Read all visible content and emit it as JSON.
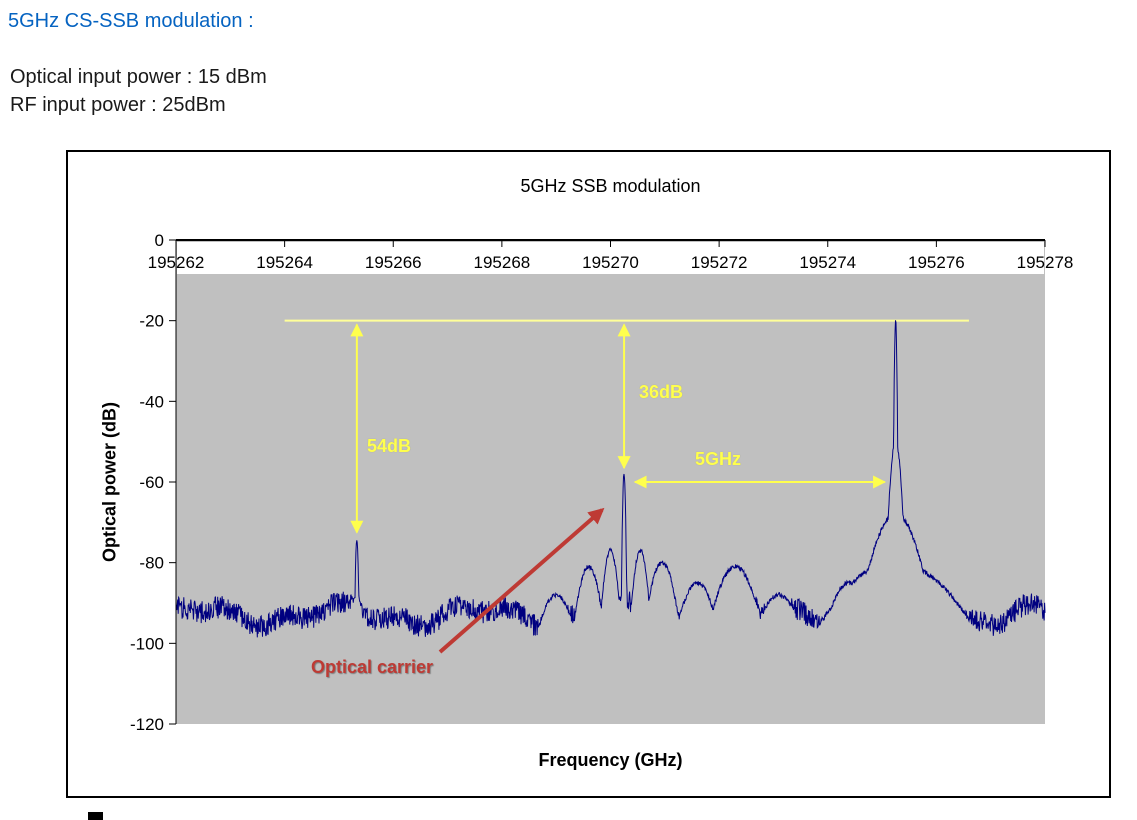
{
  "page": {
    "heading": "5GHz CS-SSB modulation :",
    "optical_input_line": "Optical input power : 15 dBm",
    "rf_input_line": "RF input power : 25dBm"
  },
  "chart_data": {
    "type": "line",
    "title": "5GHz SSB modulation",
    "xlabel": "Frequency (GHz)",
    "ylabel": "Optical power (dB)",
    "xlim": [
      195262,
      195278
    ],
    "ylim": [
      -120,
      0
    ],
    "x_ticks": [
      195262,
      195264,
      195266,
      195268,
      195270,
      195272,
      195274,
      195276,
      195278
    ],
    "y_ticks": [
      0,
      -20,
      -40,
      -60,
      -80,
      -100,
      -120
    ],
    "grid": false,
    "legend": false,
    "series": [
      {
        "name": "optical spectrum",
        "color": "#000080"
      }
    ],
    "key_points": {
      "noise_floor_db": -93,
      "optical_carrier": {
        "freq_ghz": 195270.25,
        "level_db": -58
      },
      "left_spur": {
        "freq_ghz": 195265.33,
        "level_db": -74
      },
      "ssb_sideband": {
        "freq_ghz": 195275.25,
        "level_db": -20
      },
      "carrier_suppression_db": 36,
      "spur_suppression_db": 54,
      "carrier_sideband_spacing_ghz": 5
    },
    "noise_floor": {
      "mean_db": -93,
      "jitter_db": 2.8,
      "wave1_amp_db": 2.0,
      "wave1_period_ghz": 2.6,
      "wave2_amp_db": 1.3,
      "wave2_period_ghz": 1.05
    },
    "peaks": [
      {
        "freq": 195265.33,
        "level_db": -74,
        "width_ghz": 0.02
      },
      {
        "freq": 195265.33,
        "level_db": -88,
        "width_ghz": 0.1
      },
      {
        "freq": 195269.0,
        "level_db": -88,
        "width_ghz": 0.25
      },
      {
        "freq": 195269.6,
        "level_db": -81,
        "width_ghz": 0.16
      },
      {
        "freq": 195270.0,
        "level_db": -77,
        "width_ghz": 0.1
      },
      {
        "freq": 195270.25,
        "level_db": -58,
        "width_ghz": 0.02
      },
      {
        "freq": 195270.55,
        "level_db": -77,
        "width_ghz": 0.1
      },
      {
        "freq": 195270.95,
        "level_db": -80,
        "width_ghz": 0.18
      },
      {
        "freq": 195271.6,
        "level_db": -85,
        "width_ghz": 0.25
      },
      {
        "freq": 195272.3,
        "level_db": -81,
        "width_ghz": 0.28
      },
      {
        "freq": 195273.1,
        "level_db": -88,
        "width_ghz": 0.3
      },
      {
        "freq": 195274.4,
        "level_db": -85,
        "width_ghz": 0.3
      },
      {
        "freq": 195275.25,
        "level_db": -20,
        "width_ghz": 0.015
      },
      {
        "freq": 195275.25,
        "level_db": -50,
        "width_ghz": 0.07
      },
      {
        "freq": 195275.25,
        "level_db": -68,
        "width_ghz": 0.3
      },
      {
        "freq": 195275.25,
        "level_db": -80,
        "width_ghz": 0.8
      }
    ],
    "reference_line": {
      "level_db": -20,
      "from_freq": 195264.0,
      "to_freq": 195276.6,
      "color": "#FFFF99"
    },
    "annotations": {
      "delta_54": {
        "label": "54dB",
        "freq": 195265.33,
        "from_db": -20,
        "to_db": -72.5
      },
      "delta_36": {
        "label": "36dB",
        "freq": 195270.25,
        "from_db": -20,
        "to_db": -56.5
      },
      "spacing": {
        "label": "5GHz",
        "level_db": -60,
        "from_freq": 195270.45,
        "to_freq": 195275.05
      },
      "carrier": {
        "label": "Optical carrier",
        "points_to_freq": 195270.25
      }
    },
    "colors": {
      "plot_bg": "#C0C0C0",
      "trace": "#000080",
      "reference": "#FFFF99",
      "annotation_yellow": "#FFFF4D",
      "annotation_red": "#BE3A34",
      "heading_blue": "#0563C1"
    }
  }
}
